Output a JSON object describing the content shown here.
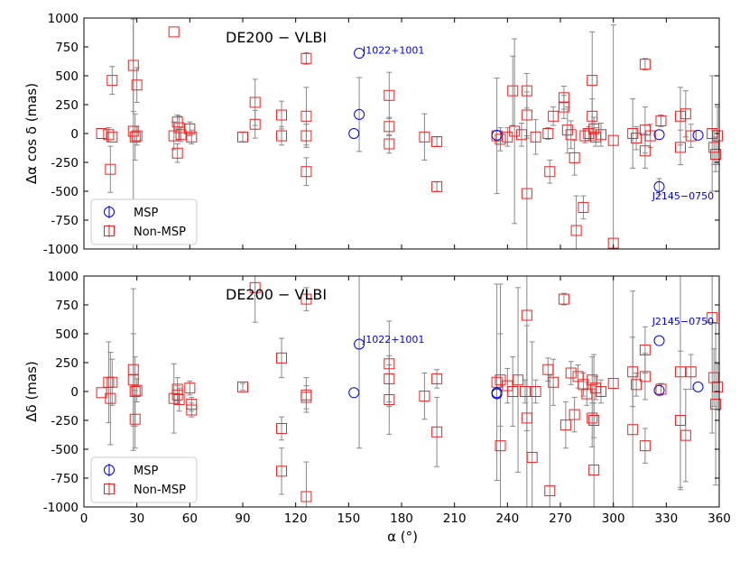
{
  "chart_data": {
    "type": "scatter",
    "xlabel": "α (°)",
    "xlim": [
      0,
      360
    ],
    "xticks": [
      0,
      30,
      60,
      90,
      120,
      150,
      180,
      210,
      240,
      270,
      300,
      330,
      360
    ],
    "colors": {
      "msp": "#0000ee",
      "nonmsp": "#ee2222",
      "errorbar": "#888888"
    },
    "legend": {
      "position": "lower-left",
      "entries": [
        "MSP",
        "Non-MSP"
      ]
    },
    "panels": [
      {
        "title": "DE200 − VLBI",
        "ylabel": "Δα cos δ (mas)",
        "ylim": [
          -1000,
          1000
        ],
        "yticks": [
          -1000,
          -750,
          -500,
          -250,
          0,
          250,
          500,
          750,
          1000
        ],
        "annotations": [
          {
            "text": "J1022+1001",
            "x": 158,
            "y": 690
          },
          {
            "text": "J2145−0750",
            "x": 322,
            "y": -570
          }
        ],
        "msp": [
          {
            "x": 153,
            "y": 0,
            "err": 0
          },
          {
            "x": 156,
            "y": 695,
            "err": 0
          },
          {
            "x": 156,
            "y": 165,
            "err": 320
          },
          {
            "x": 234,
            "y": -15,
            "err": 0
          },
          {
            "x": 326,
            "y": -10,
            "err": 0
          },
          {
            "x": 326,
            "y": -460,
            "err": 70
          },
          {
            "x": 348,
            "y": -15,
            "err": 0
          }
        ],
        "nonmsp": [
          {
            "x": 10,
            "y": 0,
            "err": 0
          },
          {
            "x": 14,
            "y": -10,
            "err": 60
          },
          {
            "x": 15,
            "y": -310,
            "err": 200
          },
          {
            "x": 16,
            "y": 460,
            "err": 120
          },
          {
            "x": 16,
            "y": -30,
            "err": 0
          },
          {
            "x": 28,
            "y": 590,
            "err": 400
          },
          {
            "x": 28,
            "y": 20,
            "err": 1500
          },
          {
            "x": 29,
            "y": -30,
            "err": 200
          },
          {
            "x": 30,
            "y": 420,
            "err": 150
          },
          {
            "x": 30,
            "y": -20,
            "err": 80
          },
          {
            "x": 51,
            "y": 880,
            "err": 0
          },
          {
            "x": 51,
            "y": -20,
            "err": 120
          },
          {
            "x": 53,
            "y": 100,
            "err": 60
          },
          {
            "x": 53,
            "y": -170,
            "err": 80
          },
          {
            "x": 54,
            "y": 50,
            "err": 100
          },
          {
            "x": 55,
            "y": -10,
            "err": 60
          },
          {
            "x": 60,
            "y": 40,
            "err": 60
          },
          {
            "x": 61,
            "y": -30,
            "err": 60
          },
          {
            "x": 90,
            "y": -30,
            "err": 40
          },
          {
            "x": 97,
            "y": 270,
            "err": 200
          },
          {
            "x": 97,
            "y": 80,
            "err": 120
          },
          {
            "x": 112,
            "y": 160,
            "err": 120
          },
          {
            "x": 112,
            "y": -20,
            "err": 80
          },
          {
            "x": 126,
            "y": 650,
            "err": 50
          },
          {
            "x": 126,
            "y": 150,
            "err": 250
          },
          {
            "x": 126,
            "y": -20,
            "err": 100
          },
          {
            "x": 126,
            "y": -330,
            "err": 120
          },
          {
            "x": 173,
            "y": 330,
            "err": 200
          },
          {
            "x": 173,
            "y": 60,
            "err": 80
          },
          {
            "x": 173,
            "y": -90,
            "err": 80
          },
          {
            "x": 193,
            "y": -30,
            "err": 200
          },
          {
            "x": 200,
            "y": -70,
            "err": 40
          },
          {
            "x": 200,
            "y": -460,
            "err": 40
          },
          {
            "x": 234,
            "y": -20,
            "err": 500
          },
          {
            "x": 236,
            "y": -50,
            "err": 100
          },
          {
            "x": 240,
            "y": -30,
            "err": 80
          },
          {
            "x": 243,
            "y": 370,
            "err": 300
          },
          {
            "x": 244,
            "y": 20,
            "err": 800
          },
          {
            "x": 248,
            "y": -10,
            "err": 100
          },
          {
            "x": 251,
            "y": 370,
            "err": 150
          },
          {
            "x": 251,
            "y": 160,
            "err": 200
          },
          {
            "x": 251,
            "y": -520,
            "err": 500
          },
          {
            "x": 256,
            "y": -30,
            "err": 150
          },
          {
            "x": 263,
            "y": 0,
            "err": 50
          },
          {
            "x": 264,
            "y": -330,
            "err": 100
          },
          {
            "x": 266,
            "y": 150,
            "err": 80
          },
          {
            "x": 272,
            "y": 310,
            "err": 100
          },
          {
            "x": 272,
            "y": 230,
            "err": 100
          },
          {
            "x": 274,
            "y": 30,
            "err": 200
          },
          {
            "x": 276,
            "y": -10,
            "err": 120
          },
          {
            "x": 278,
            "y": -210,
            "err": 150
          },
          {
            "x": 279,
            "y": -840,
            "err": 300
          },
          {
            "x": 283,
            "y": -640,
            "err": 100
          },
          {
            "x": 284,
            "y": -20,
            "err": 60
          },
          {
            "x": 286,
            "y": 0,
            "err": 60
          },
          {
            "x": 288,
            "y": 460,
            "err": 420
          },
          {
            "x": 288,
            "y": 150,
            "err": 150
          },
          {
            "x": 289,
            "y": 40,
            "err": 100
          },
          {
            "x": 290,
            "y": -30,
            "err": 80
          },
          {
            "x": 293,
            "y": -10,
            "err": 100
          },
          {
            "x": 300,
            "y": -950,
            "err": 0
          },
          {
            "x": 300,
            "y": -60,
            "err": 1000
          },
          {
            "x": 311,
            "y": 0,
            "err": 300
          },
          {
            "x": 313,
            "y": -40,
            "err": 100
          },
          {
            "x": 318,
            "y": 600,
            "err": 50
          },
          {
            "x": 318,
            "y": 30,
            "err": 200
          },
          {
            "x": 318,
            "y": -150,
            "err": 150
          },
          {
            "x": 321,
            "y": -20,
            "err": 100
          },
          {
            "x": 327,
            "y": 110,
            "err": 50
          },
          {
            "x": 338,
            "y": 150,
            "err": 250
          },
          {
            "x": 338,
            "y": -120,
            "err": 150
          },
          {
            "x": 341,
            "y": 170,
            "err": 200
          },
          {
            "x": 344,
            "y": -20,
            "err": 100
          },
          {
            "x": 356,
            "y": 0,
            "err": 500
          },
          {
            "x": 357,
            "y": -120,
            "err": 150
          },
          {
            "x": 358,
            "y": -180,
            "err": 150
          },
          {
            "x": 359,
            "y": -20,
            "err": 250
          }
        ]
      },
      {
        "title": "DE200 − VLBI",
        "ylabel": "Δδ (mas)",
        "ylim": [
          -1000,
          1000
        ],
        "yticks": [
          -1000,
          -750,
          -500,
          -250,
          0,
          250,
          500,
          750,
          1000
        ],
        "annotations": [
          {
            "text": "J1022+1001",
            "x": 158,
            "y": 420
          },
          {
            "text": "J2145−0750",
            "x": 322,
            "y": 580
          }
        ],
        "msp": [
          {
            "x": 153,
            "y": -10,
            "err": 0
          },
          {
            "x": 156,
            "y": 410,
            "err": 900
          },
          {
            "x": 234,
            "y": -20,
            "err": 0
          },
          {
            "x": 234,
            "y": -10,
            "err": 0
          },
          {
            "x": 326,
            "y": 440,
            "err": 0
          },
          {
            "x": 326,
            "y": 10,
            "err": 0
          },
          {
            "x": 348,
            "y": 40,
            "err": 0
          }
        ],
        "nonmsp": [
          {
            "x": 10,
            "y": -10,
            "err": 0
          },
          {
            "x": 14,
            "y": 80,
            "err": 350
          },
          {
            "x": 15,
            "y": -60,
            "err": 400
          },
          {
            "x": 16,
            "y": 80,
            "err": 200
          },
          {
            "x": 28,
            "y": 190,
            "err": 700
          },
          {
            "x": 28,
            "y": 100,
            "err": 400
          },
          {
            "x": 29,
            "y": -240,
            "err": 250
          },
          {
            "x": 29,
            "y": 0,
            "err": 300
          },
          {
            "x": 30,
            "y": 10,
            "err": 100
          },
          {
            "x": 51,
            "y": -60,
            "err": 300
          },
          {
            "x": 53,
            "y": 20,
            "err": 100
          },
          {
            "x": 53,
            "y": -30,
            "err": 80
          },
          {
            "x": 54,
            "y": -70,
            "err": 100
          },
          {
            "x": 60,
            "y": 30,
            "err": 60
          },
          {
            "x": 61,
            "y": -110,
            "err": 60
          },
          {
            "x": 61,
            "y": -160,
            "err": 60
          },
          {
            "x": 90,
            "y": 40,
            "err": 30
          },
          {
            "x": 97,
            "y": 900,
            "err": 300
          },
          {
            "x": 112,
            "y": 290,
            "err": 170
          },
          {
            "x": 112,
            "y": -320,
            "err": 100
          },
          {
            "x": 112,
            "y": -690,
            "err": 200
          },
          {
            "x": 126,
            "y": 800,
            "err": 100
          },
          {
            "x": 126,
            "y": -30,
            "err": 150
          },
          {
            "x": 126,
            "y": -50,
            "err": 100
          },
          {
            "x": 126,
            "y": -910,
            "err": 300
          },
          {
            "x": 173,
            "y": 240,
            "err": 370
          },
          {
            "x": 173,
            "y": 110,
            "err": 200
          },
          {
            "x": 173,
            "y": -70,
            "err": 300
          },
          {
            "x": 193,
            "y": -40,
            "err": 200
          },
          {
            "x": 200,
            "y": 110,
            "err": 80
          },
          {
            "x": 200,
            "y": -350,
            "err": 300
          },
          {
            "x": 234,
            "y": 80,
            "err": 850
          },
          {
            "x": 236,
            "y": 100,
            "err": 400
          },
          {
            "x": 236,
            "y": -470,
            "err": 1400
          },
          {
            "x": 240,
            "y": 50,
            "err": 150
          },
          {
            "x": 243,
            "y": 0,
            "err": 300
          },
          {
            "x": 246,
            "y": 100,
            "err": 800
          },
          {
            "x": 250,
            "y": 0,
            "err": 100
          },
          {
            "x": 251,
            "y": 660,
            "err": 1000
          },
          {
            "x": 251,
            "y": -230,
            "err": 800
          },
          {
            "x": 254,
            "y": -570,
            "err": 1000
          },
          {
            "x": 256,
            "y": 0,
            "err": 100
          },
          {
            "x": 263,
            "y": 190,
            "err": 100
          },
          {
            "x": 264,
            "y": -860,
            "err": 1000
          },
          {
            "x": 266,
            "y": 80,
            "err": 200
          },
          {
            "x": 272,
            "y": 800,
            "err": 50
          },
          {
            "x": 273,
            "y": -290,
            "err": 200
          },
          {
            "x": 276,
            "y": 160,
            "err": 100
          },
          {
            "x": 278,
            "y": -200,
            "err": 150
          },
          {
            "x": 280,
            "y": 130,
            "err": 100
          },
          {
            "x": 283,
            "y": 60,
            "err": 100
          },
          {
            "x": 285,
            "y": -20,
            "err": 100
          },
          {
            "x": 288,
            "y": 100,
            "err": 200
          },
          {
            "x": 288,
            "y": -230,
            "err": 250
          },
          {
            "x": 289,
            "y": -250,
            "err": 150
          },
          {
            "x": 289,
            "y": -680,
            "err": 1000
          },
          {
            "x": 290,
            "y": 30,
            "err": 100
          },
          {
            "x": 293,
            "y": 0,
            "err": 100
          },
          {
            "x": 300,
            "y": 70,
            "err": 1200
          },
          {
            "x": 311,
            "y": 170,
            "err": 300
          },
          {
            "x": 311,
            "y": -330,
            "err": 1200
          },
          {
            "x": 313,
            "y": 60,
            "err": 100
          },
          {
            "x": 318,
            "y": 360,
            "err": 200
          },
          {
            "x": 318,
            "y": 130,
            "err": 200
          },
          {
            "x": 318,
            "y": -470,
            "err": 150
          },
          {
            "x": 327,
            "y": 20,
            "err": 50
          },
          {
            "x": 338,
            "y": 170,
            "err": 1000
          },
          {
            "x": 338,
            "y": -250,
            "err": 600
          },
          {
            "x": 341,
            "y": -380,
            "err": 400
          },
          {
            "x": 344,
            "y": 170,
            "err": 150
          },
          {
            "x": 356,
            "y": 640,
            "err": 1000
          },
          {
            "x": 357,
            "y": 120,
            "err": 250
          },
          {
            "x": 358,
            "y": -110,
            "err": 700
          },
          {
            "x": 359,
            "y": 40,
            "err": 200
          }
        ]
      }
    ]
  }
}
